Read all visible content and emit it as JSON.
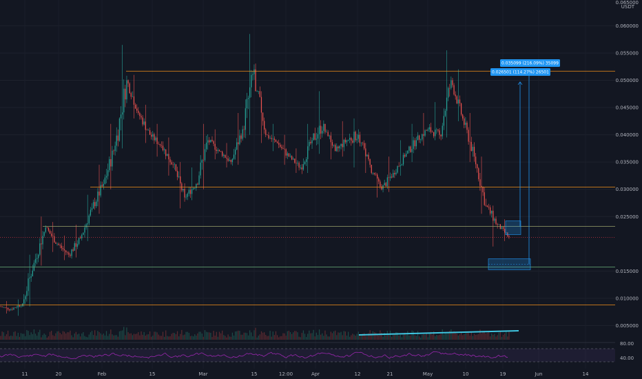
{
  "chart_data": {
    "type": "candlestick",
    "quote_currency": "USDT",
    "y_axis": {
      "top_label": "0.065000",
      "ticks": [
        0.06,
        0.055,
        0.05,
        0.045,
        0.04,
        0.035,
        0.03,
        0.025,
        0.015,
        0.01,
        0.005
      ],
      "tick_labels": [
        "0.060000",
        "0.055000",
        "0.050000",
        "0.045000",
        "0.040000",
        "0.035000",
        "0.030000",
        "0.025000",
        "0.015000",
        "0.010000",
        "0.005000"
      ],
      "ylim": [
        0.0,
        0.065
      ]
    },
    "x_axis": {
      "labels": [
        "11",
        "20",
        "Feb",
        "15",
        "Mar",
        "15",
        "12:00",
        "Apr",
        "12",
        "21",
        "May",
        "10",
        "19",
        "Jun",
        "14"
      ]
    },
    "horizontal_levels": [
      {
        "value": 0.051674,
        "label": "0.051674",
        "color": "#f7931a"
      },
      {
        "value": 0.030423,
        "label": "0.030423",
        "color": "#f7931a"
      },
      {
        "value": 0.023181,
        "label": "0.023181",
        "color": "#9aa36a"
      },
      {
        "value": 0.015746,
        "label": "0.015746",
        "color": "#5e9c6e"
      },
      {
        "value": 0.00879,
        "label": "0.008790",
        "color": "#f7931a"
      }
    ],
    "current_price": {
      "value": 0.021153,
      "label": "0.021153",
      "countdown": "36:33",
      "color": "#f23645"
    },
    "measurements": [
      {
        "label": "0.035099 (216.09%) 35099",
        "from": 0.016244,
        "to": 0.051343
      },
      {
        "label": "0.026501 (114.27%) 26501",
        "from": 0.023191,
        "to": 0.049692
      }
    ],
    "trendline": {
      "color": "#3fc6e0",
      "from": 0.0015,
      "to": 0.0033
    },
    "rsi": {
      "levels": [
        "80.00",
        "40.00"
      ],
      "color": "#9c27b0"
    },
    "price_series": {
      "open_values": [
        0.0085,
        0.008,
        0.009,
        0.0165,
        0.023,
        0.02,
        0.018,
        0.021,
        0.0265,
        0.031,
        0.038,
        0.05,
        0.044,
        0.04,
        0.038,
        0.0345,
        0.0285,
        0.031,
        0.039,
        0.037,
        0.035,
        0.041,
        0.052,
        0.04,
        0.0385,
        0.036,
        0.034,
        0.039,
        0.042,
        0.037,
        0.039,
        0.04,
        0.0345,
        0.03,
        0.033,
        0.036,
        0.039,
        0.041,
        0.04,
        0.05,
        0.043,
        0.036,
        0.027,
        0.0235
      ],
      "close_values": [
        0.008,
        0.009,
        0.0165,
        0.023,
        0.02,
        0.018,
        0.021,
        0.0265,
        0.031,
        0.038,
        0.05,
        0.044,
        0.04,
        0.038,
        0.0345,
        0.0285,
        0.031,
        0.039,
        0.037,
        0.035,
        0.041,
        0.052,
        0.04,
        0.0385,
        0.036,
        0.034,
        0.039,
        0.042,
        0.037,
        0.039,
        0.04,
        0.0345,
        0.03,
        0.033,
        0.036,
        0.039,
        0.041,
        0.04,
        0.05,
        0.043,
        0.036,
        0.027,
        0.0235,
        0.0212
      ],
      "high_values": [
        0.0095,
        0.0098,
        0.018,
        0.025,
        0.024,
        0.0215,
        0.0235,
        0.029,
        0.0345,
        0.042,
        0.0565,
        0.051,
        0.0455,
        0.042,
        0.0395,
        0.035,
        0.034,
        0.042,
        0.041,
        0.0385,
        0.044,
        0.0585,
        0.048,
        0.042,
        0.04,
        0.0375,
        0.042,
        0.048,
        0.0405,
        0.0425,
        0.043,
        0.0385,
        0.033,
        0.036,
        0.039,
        0.042,
        0.044,
        0.046,
        0.0555,
        0.052,
        0.044,
        0.036,
        0.027,
        0.0245
      ],
      "low_values": [
        0.0072,
        0.0068,
        0.0085,
        0.016,
        0.0185,
        0.017,
        0.0175,
        0.0205,
        0.0255,
        0.03,
        0.0375,
        0.043,
        0.0385,
        0.036,
        0.0325,
        0.0265,
        0.028,
        0.03,
        0.0355,
        0.034,
        0.0345,
        0.04,
        0.0385,
        0.037,
        0.0345,
        0.033,
        0.033,
        0.0365,
        0.0355,
        0.036,
        0.034,
        0.033,
        0.0285,
        0.0295,
        0.0325,
        0.035,
        0.038,
        0.039,
        0.0395,
        0.0425,
        0.035,
        0.0255,
        0.0195,
        0.0205
      ]
    }
  }
}
